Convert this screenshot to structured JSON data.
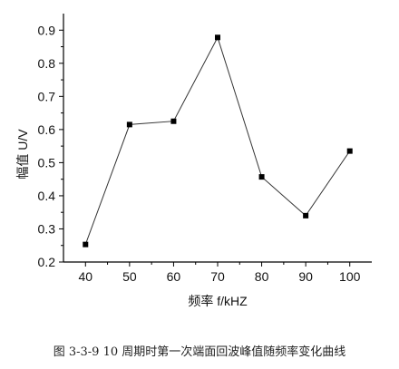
{
  "caption": "图 3-3-9 10 周期时第一次端面回波峰值随频率变化曲线",
  "chart_data": {
    "type": "line",
    "title": "",
    "xlabel": "频率  f/kHZ",
    "ylabel": "幅值  U/V",
    "x": [
      40,
      50,
      60,
      70,
      80,
      90,
      100
    ],
    "series": [
      {
        "name": "",
        "values": [
          0.253,
          0.615,
          0.625,
          0.878,
          0.457,
          0.34,
          0.535
        ]
      }
    ],
    "xlim": [
      35,
      105
    ],
    "ylim": [
      0.2,
      0.95
    ],
    "xticks": [
      40,
      50,
      60,
      70,
      80,
      90,
      100
    ],
    "yticks": [
      0.2,
      0.3,
      0.4,
      0.5,
      0.6,
      0.7,
      0.8,
      0.9
    ],
    "ytick_labels": [
      "0.2",
      "0.3",
      "0.4",
      "0.5",
      "0.6",
      "0.7",
      "0.8",
      "0.9"
    ],
    "marker": "square",
    "line_color": "#333333",
    "marker_color": "#000000",
    "grid": false,
    "legend": "none"
  }
}
